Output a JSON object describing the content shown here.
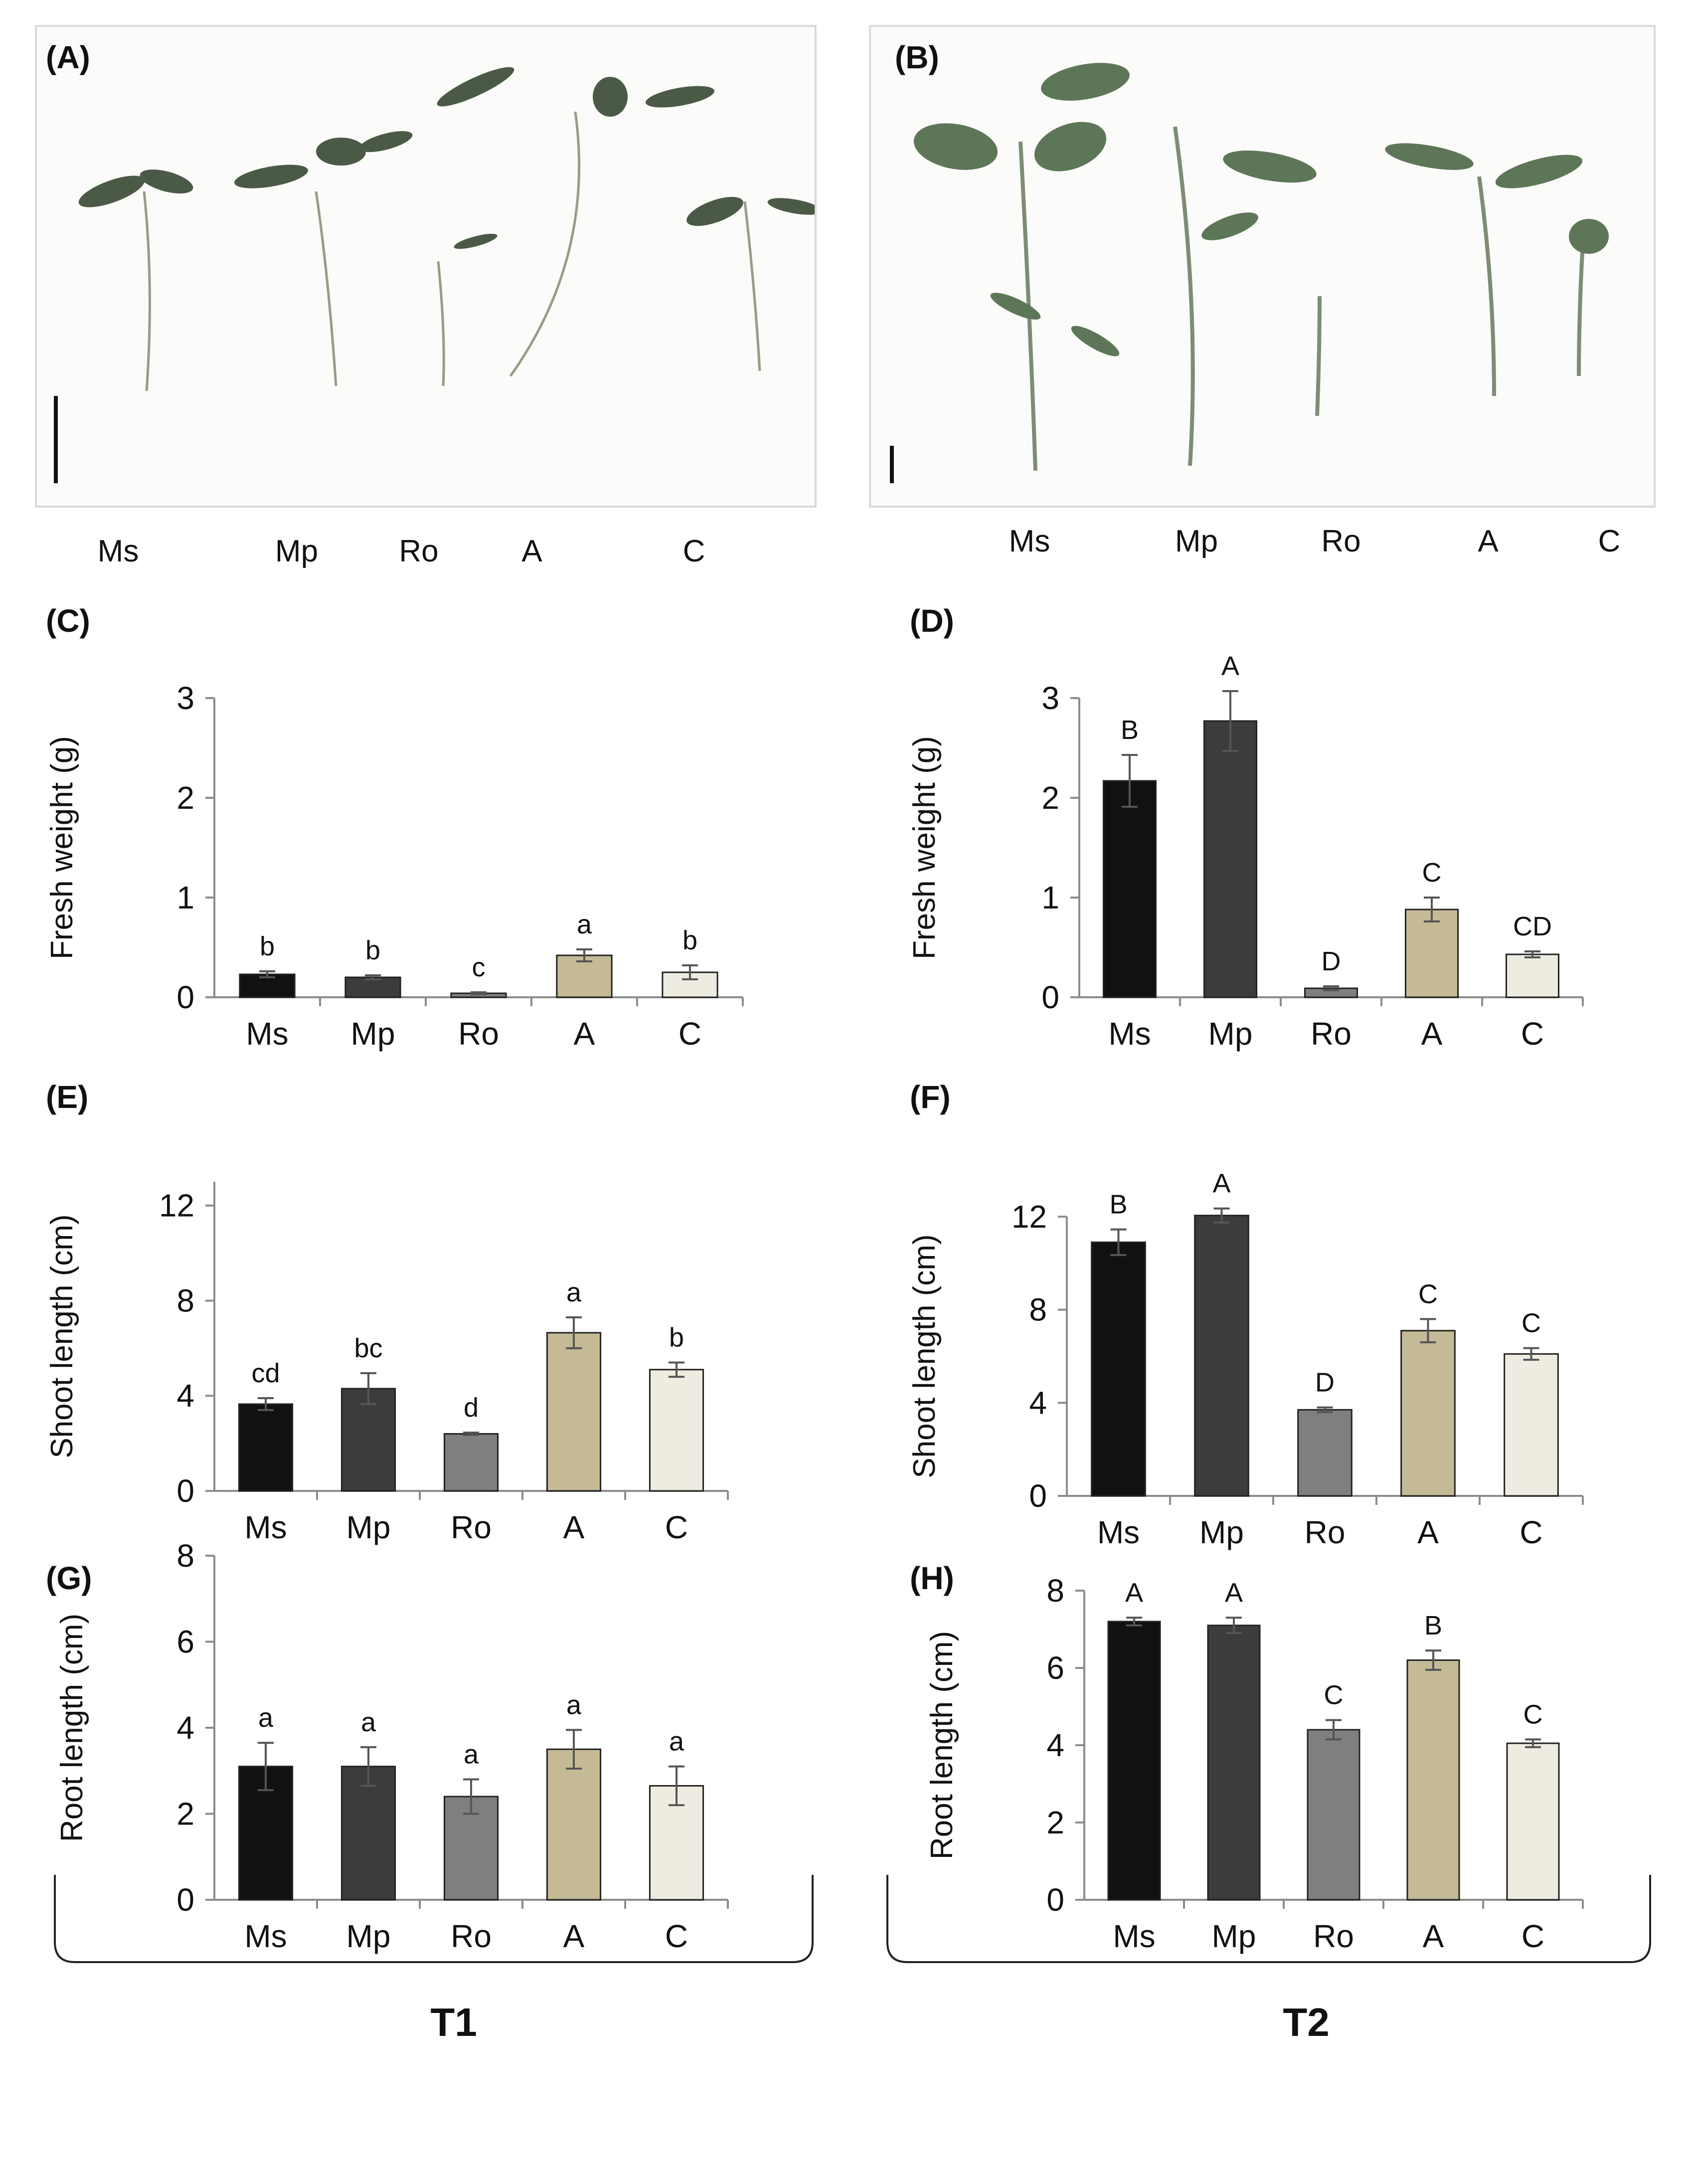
{
  "panels": {
    "A": {
      "label": "(A)"
    },
    "B": {
      "label": "(B)"
    }
  },
  "photo_labels_A": [
    "Ms",
    "Mp",
    "Ro",
    "A",
    "C"
  ],
  "photo_labels_B": [
    "Ms",
    "Mp",
    "Ro",
    "A",
    "C"
  ],
  "treatments": {
    "t1": "T1",
    "t2": "T2"
  },
  "colors": {
    "Ms": "#111111",
    "Mp": "#3c3c3c",
    "Ro": "#7f7f7f",
    "A": "#c4bb96",
    "C": "#eeece1",
    "axis": "#8c8c8c",
    "error": "#555555"
  },
  "chart_data": [
    {
      "id": "C",
      "label": "(C)",
      "type": "bar",
      "categories": [
        "Ms",
        "Mp",
        "Ro",
        "A",
        "C"
      ],
      "values": [
        0.23,
        0.2,
        0.04,
        0.42,
        0.25
      ],
      "errors": [
        0.03,
        0.02,
        0.01,
        0.06,
        0.07
      ],
      "letters": [
        "b",
        "b",
        "c",
        "a",
        "b"
      ],
      "ylabel": "Fresh weight (g)",
      "ylim": [
        0,
        3
      ],
      "ticks": [
        0,
        1,
        2,
        3
      ],
      "tick_labels": [
        "0",
        "1",
        "2",
        "3"
      ]
    },
    {
      "id": "D",
      "label": "(D)",
      "type": "bar",
      "categories": [
        "Ms",
        "Mp",
        "Ro",
        "A",
        "C"
      ],
      "values": [
        2.17,
        2.77,
        0.09,
        0.88,
        0.43
      ],
      "errors": [
        0.26,
        0.3,
        0.02,
        0.12,
        0.03
      ],
      "letters": [
        "B",
        "A",
        "D",
        "C",
        "CD"
      ],
      "ylabel": "Fresh weight (g)",
      "ylim": [
        0,
        3
      ],
      "ticks": [
        0,
        1,
        2,
        3
      ],
      "tick_labels": [
        "0",
        "1",
        "2",
        "3"
      ]
    },
    {
      "id": "E",
      "label": "(E)",
      "type": "bar",
      "categories": [
        "Ms",
        "Mp",
        "Ro",
        "A",
        "C"
      ],
      "values": [
        3.65,
        4.3,
        2.4,
        6.65,
        5.1
      ],
      "errors": [
        0.25,
        0.65,
        0.05,
        0.65,
        0.3
      ],
      "letters": [
        "cd",
        "bc",
        "d",
        "a",
        "b"
      ],
      "ylabel": "Shoot length (cm)",
      "ylim": [
        0,
        13
      ],
      "ticks": [
        0,
        4,
        8,
        12
      ],
      "tick_labels": [
        "0",
        "4",
        "8",
        "12"
      ]
    },
    {
      "id": "F",
      "label": "(F)",
      "type": "bar",
      "categories": [
        "Ms",
        "Mp",
        "Ro",
        "A",
        "C"
      ],
      "values": [
        10.9,
        12.05,
        3.7,
        7.1,
        6.1
      ],
      "errors": [
        0.55,
        0.3,
        0.1,
        0.5,
        0.25
      ],
      "letters": [
        "B",
        "A",
        "D",
        "C",
        "C"
      ],
      "ylabel": "Shoot length (cm)",
      "ylim": [
        0,
        12
      ],
      "ticks": [
        0,
        4,
        8,
        12
      ],
      "tick_labels": [
        "0",
        "4",
        "8",
        "12"
      ]
    },
    {
      "id": "G",
      "label": "(G)",
      "type": "bar",
      "categories": [
        "Ms",
        "Mp",
        "Ro",
        "A",
        "C"
      ],
      "values": [
        3.1,
        3.1,
        2.4,
        3.5,
        2.65
      ],
      "errors": [
        0.55,
        0.45,
        0.4,
        0.45,
        0.45
      ],
      "letters": [
        "a",
        "a",
        "a",
        "a",
        "a"
      ],
      "ylabel": "Root length (cm)",
      "ylim": [
        0,
        8
      ],
      "ticks": [
        0,
        2,
        4,
        6,
        8
      ],
      "tick_labels": [
        "0",
        "2",
        "4",
        "6",
        "8"
      ]
    },
    {
      "id": "H",
      "label": "(H)",
      "type": "bar",
      "categories": [
        "Ms",
        "Mp",
        "Ro",
        "A",
        "C"
      ],
      "values": [
        7.2,
        7.1,
        4.4,
        6.2,
        4.05
      ],
      "errors": [
        0.1,
        0.2,
        0.25,
        0.25,
        0.1
      ],
      "letters": [
        "A",
        "A",
        "C",
        "B",
        "C"
      ],
      "ylabel": "Root length (cm)",
      "ylim": [
        0,
        8
      ],
      "ticks": [
        0,
        2,
        4,
        6,
        8
      ],
      "tick_labels": [
        "0",
        "2",
        "4",
        "6",
        "8"
      ]
    }
  ]
}
